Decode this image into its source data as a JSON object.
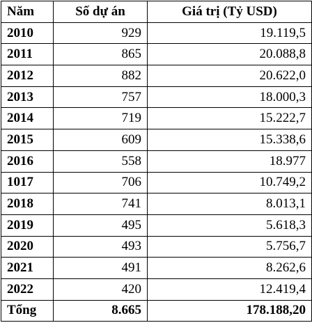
{
  "table": {
    "header": [
      "Năm",
      "Số dự án",
      "Giá trị (Tỷ USD)"
    ],
    "rows": [
      [
        "2010",
        "929",
        "19.119,5"
      ],
      [
        "2011",
        "865",
        "20.088,8"
      ],
      [
        "2012",
        "882",
        "20.622,0"
      ],
      [
        "2013",
        "757",
        "18.000,3"
      ],
      [
        "2014",
        "719",
        "15.222,7"
      ],
      [
        "2015",
        "609",
        "15.338,6"
      ],
      [
        "2016",
        "558",
        "18.977"
      ],
      [
        "1017",
        "706",
        "10.749,2"
      ],
      [
        "2018",
        "741",
        "8.013,1"
      ],
      [
        "2019",
        "495",
        "5.618,3"
      ],
      [
        "2020",
        "493",
        "5.756,7"
      ],
      [
        "2021",
        "491",
        "8.262,6"
      ],
      [
        "2022",
        "420",
        "12.419,4"
      ]
    ],
    "total": [
      "Tổng",
      "8.665",
      "178.188,20"
    ]
  }
}
